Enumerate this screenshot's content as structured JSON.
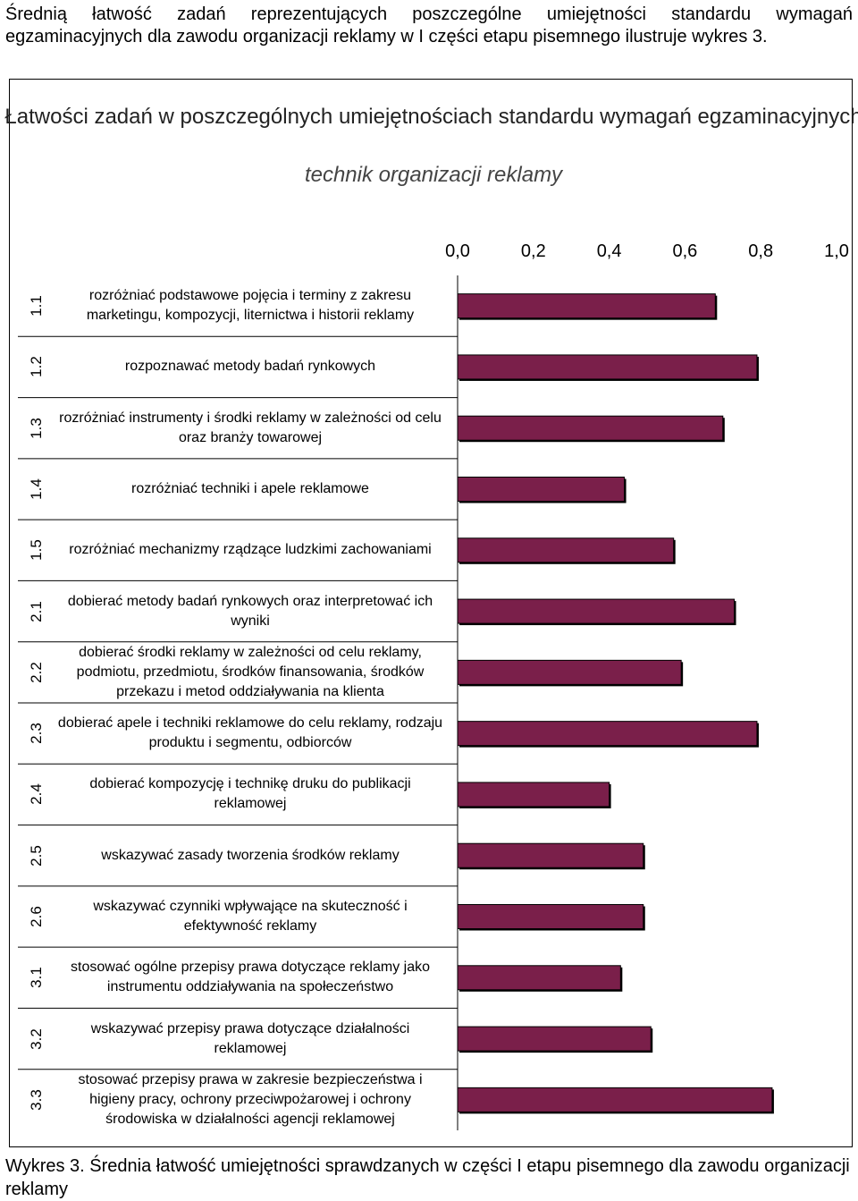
{
  "intro_text": "Średnią łatwość zadań reprezentujących poszczególne umiejętności standardu wymagań egzaminacyjnych dla zawodu organizacji reklamy w I części etapu pisemnego ilustruje wykres 3.",
  "caption": "Wykres 3. Średnia łatwość umiejętności sprawdzanych w części I etapu pisemnego dla zawodu organizacji reklamy",
  "chart_data": {
    "type": "bar",
    "orientation": "horizontal",
    "title": "Łatwości zadań w poszczególnych umiejętnościach standardu wymagań egzaminacyjnych",
    "subtitle": "technik organizacji reklamy",
    "xlim": [
      0,
      1
    ],
    "x_tick_labels": [
      "0,0",
      "0,2",
      "0,4",
      "0,6",
      "0,8",
      "1,0"
    ],
    "x_axis_position": "top",
    "grid": false,
    "legend": "none",
    "bar_color": "#7a1f4a",
    "categories": [
      "1.1",
      "1.2",
      "1.3",
      "1.4",
      "1.5",
      "2.1",
      "2.2",
      "2.3",
      "2.4",
      "2.5",
      "2.6",
      "3.1",
      "3.2",
      "3.3"
    ],
    "category_labels": [
      "rozróżniać podstawowe pojęcia i terminy z zakresu marketingu, kompozycji, liternictwa i historii reklamy",
      "rozpoznawać metody badań rynkowych",
      "rozróżniać instrumenty i środki reklamy w zależności od celu oraz branży towarowej",
      "rozróżniać techniki i apele reklamowe",
      "rozróżniać mechanizmy rządzące ludzkimi zachowaniami",
      "dobierać metody badań rynkowych oraz interpretować ich wyniki",
      "dobierać środki reklamy w zależności od celu reklamy, podmiotu, przedmiotu, środków finansowania, środków przekazu i metod oddziaływania na klienta",
      "dobierać apele i techniki reklamowe do celu reklamy, rodzaju produktu i segmentu, odbiorców",
      "dobierać kompozycję i technikę druku do publikacji reklamowej",
      "wskazywać zasady tworzenia środków reklamy",
      "wskazywać czynniki wpływające na skuteczność i efektywność reklamy",
      "stosować ogólne przepisy prawa dotyczące reklamy jako instrumentu oddziaływania na społeczeństwo",
      "wskazywać przepisy prawa dotyczące działalności reklamowej",
      "stosować przepisy prawa w zakresie bezpieczeństwa i higieny pracy, ochrony przeciwpożarowej i ochrony środowiska w działalności agencji reklamowej"
    ],
    "values": [
      0.68,
      0.79,
      0.7,
      0.44,
      0.57,
      0.73,
      0.59,
      0.79,
      0.4,
      0.49,
      0.49,
      0.43,
      0.51,
      0.83
    ]
  }
}
